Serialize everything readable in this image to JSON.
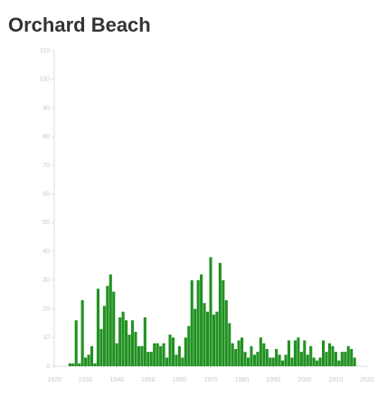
{
  "chart_data": {
    "type": "bar",
    "title": "Orchard Beach",
    "color": "#229122",
    "x": [
      1925,
      1926,
      1927,
      1928,
      1929,
      1930,
      1931,
      1932,
      1933,
      1934,
      1935,
      1936,
      1937,
      1938,
      1939,
      1940,
      1941,
      1942,
      1943,
      1944,
      1945,
      1946,
      1947,
      1948,
      1949,
      1950,
      1951,
      1952,
      1953,
      1954,
      1955,
      1956,
      1957,
      1958,
      1959,
      1960,
      1961,
      1962,
      1963,
      1964,
      1965,
      1966,
      1967,
      1968,
      1969,
      1970,
      1971,
      1972,
      1973,
      1974,
      1975,
      1976,
      1977,
      1978,
      1979,
      1980,
      1981,
      1982,
      1983,
      1984,
      1985,
      1986,
      1987,
      1988,
      1989,
      1990,
      1991,
      1992,
      1993,
      1994,
      1995,
      1996,
      1997,
      1998,
      1999,
      2000,
      2001,
      2002,
      2003,
      2004,
      2005,
      2006,
      2007,
      2008,
      2009,
      2010,
      2011,
      2012,
      2013,
      2014,
      2015,
      2016
    ],
    "values": [
      1,
      1,
      16,
      1,
      23,
      3,
      4,
      7,
      1,
      27,
      13,
      21,
      28,
      32,
      26,
      8,
      17,
      19,
      16,
      11,
      16,
      12,
      7,
      7,
      17,
      5,
      5,
      8,
      8,
      7,
      8,
      3,
      11,
      10,
      4,
      7,
      3,
      10,
      14,
      30,
      20,
      30,
      32,
      22,
      19,
      38,
      18,
      19,
      36,
      30,
      23,
      15,
      8,
      6,
      9,
      10,
      5,
      3,
      7,
      4,
      5,
      10,
      8,
      6,
      3,
      3,
      6,
      4,
      2,
      4,
      9,
      3,
      9,
      10,
      5,
      9,
      4,
      7,
      3,
      2,
      3,
      9,
      5,
      8,
      7,
      5,
      2,
      5,
      5,
      7,
      6,
      3
    ],
    "xlim": [
      1920,
      2020
    ],
    "xticks": [
      1920,
      1930,
      1940,
      1950,
      1960,
      1970,
      1980,
      1990,
      2000,
      2010,
      2020
    ],
    "ylim": [
      0,
      110
    ],
    "yticks": [
      0,
      10,
      20,
      30,
      40,
      50,
      60,
      70,
      80,
      90,
      100,
      110
    ]
  }
}
